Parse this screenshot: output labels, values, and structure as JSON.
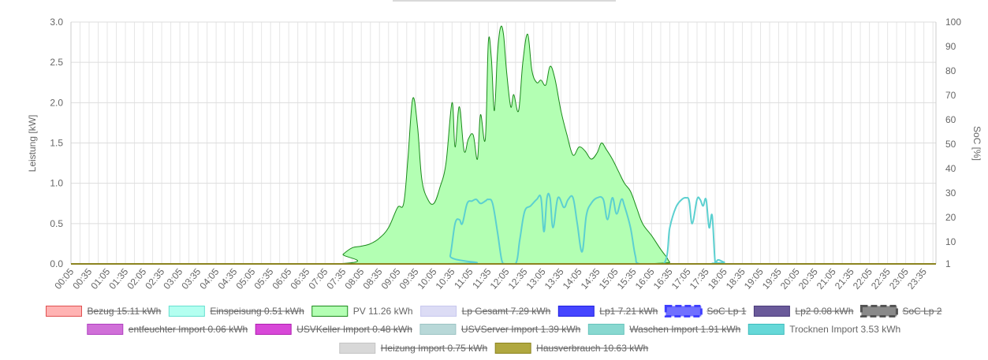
{
  "chart_data": {
    "type": "area",
    "ylabel_left": "Leistung [kW]",
    "ylabel_right": "SoC [%]",
    "ylim_left": [
      0,
      3.0
    ],
    "yticks_left": [
      "0.0",
      "0.5",
      "1.0",
      "1.5",
      "2.0",
      "2.5",
      "3.0"
    ],
    "ylim_right": [
      1,
      100
    ],
    "yticks_right": [
      "1",
      "10",
      "20",
      "30",
      "40",
      "50",
      "60",
      "70",
      "80",
      "90",
      "100"
    ],
    "x_labels": [
      "00:05",
      "00:35",
      "01:05",
      "01:35",
      "02:05",
      "02:35",
      "03:05",
      "03:35",
      "04:05",
      "04:35",
      "05:05",
      "05:35",
      "06:05",
      "06:35",
      "07:05",
      "07:35",
      "08:05",
      "08:35",
      "09:05",
      "09:35",
      "10:05",
      "10:35",
      "11:05",
      "11:35",
      "12:05",
      "12:35",
      "13:05",
      "13:35",
      "14:05",
      "14:35",
      "15:05",
      "15:35",
      "16:05",
      "16:35",
      "17:05",
      "17:35",
      "18:05",
      "18:35",
      "19:05",
      "19:35",
      "20:05",
      "20:35",
      "21:05",
      "21:35",
      "22:05",
      "22:35",
      "23:05",
      "23:35"
    ],
    "grid": true,
    "legend_placement": "bottom",
    "legend": [
      {
        "label": "Bezug 15.11 kWh",
        "fill": "#ffb3b3",
        "stroke": "#e05050",
        "hidden": true,
        "dashed": false
      },
      {
        "label": "Einspeisung 0.51 kWh",
        "fill": "#b3fff0",
        "stroke": "#66e0d0",
        "hidden": true,
        "dashed": false
      },
      {
        "label": "PV 11.26 kWh",
        "fill": "#b3ffb3",
        "stroke": "#1a8a1a",
        "hidden": false,
        "dashed": false
      },
      {
        "label": "Lp Gesamt 7.29 kWh",
        "fill": "#dcdcf5",
        "stroke": "#c8c8ee",
        "hidden": true,
        "dashed": false
      },
      {
        "label": "Lp1 7.21 kWh",
        "fill": "#4545ff",
        "stroke": "#2020e0",
        "hidden": true,
        "dashed": false
      },
      {
        "label": "SoC Lp 1",
        "fill": "#7070ff",
        "stroke": "#4040ff",
        "hidden": true,
        "dashed": true
      },
      {
        "label": "Lp2 0.08 kWh",
        "fill": "#6a5a9a",
        "stroke": "#4a3a7a",
        "hidden": true,
        "dashed": false
      },
      {
        "label": "SoC Lp 2",
        "fill": "#8a8a8a",
        "stroke": "#555555",
        "hidden": true,
        "dashed": true
      },
      {
        "label": "entfeuchter Import 0.06 kWh",
        "fill": "#d070d8",
        "stroke": "#b040c0",
        "hidden": true,
        "dashed": false
      },
      {
        "label": "USVKeller Import 0.48 kWh",
        "fill": "#d848d8",
        "stroke": "#b020b0",
        "hidden": true,
        "dashed": false
      },
      {
        "label": "USVServer Import 1.39 kWh",
        "fill": "#b8d8d8",
        "stroke": "#9cc4c4",
        "hidden": true,
        "dashed": false
      },
      {
        "label": "Waschen Import 1.91 kWh",
        "fill": "#88d8d0",
        "stroke": "#66c4bc",
        "hidden": true,
        "dashed": false
      },
      {
        "label": "Trocknen Import 3.53 kWh",
        "fill": "#66d8d8",
        "stroke": "#3cbcbc",
        "hidden": false,
        "dashed": false
      },
      {
        "label": "Heizung Import 0.75 kWh",
        "fill": "#d8d8d8",
        "stroke": "#c4c4c4",
        "hidden": true,
        "dashed": false
      },
      {
        "label": "Hausverbrauch 10.63 kWh",
        "fill": "#b0a840",
        "stroke": "#8c8420",
        "hidden": true,
        "dashed": false
      }
    ],
    "series": [
      {
        "name": "PV 11.26 kWh",
        "color": "#1a8a1a",
        "fill": "#b3ffb3",
        "points": [
          [
            "00:05",
            0
          ],
          [
            "07:20",
            0
          ],
          [
            "07:35",
            0.12
          ],
          [
            "07:50",
            0.2
          ],
          [
            "08:05",
            0.22
          ],
          [
            "08:20",
            0.25
          ],
          [
            "08:35",
            0.32
          ],
          [
            "08:50",
            0.45
          ],
          [
            "09:05",
            0.7
          ],
          [
            "09:15",
            0.75
          ],
          [
            "09:22",
            1.3
          ],
          [
            "09:30",
            2.05
          ],
          [
            "09:38",
            1.7
          ],
          [
            "09:45",
            1.05
          ],
          [
            "09:55",
            0.8
          ],
          [
            "10:05",
            0.75
          ],
          [
            "10:15",
            0.95
          ],
          [
            "10:25",
            1.25
          ],
          [
            "10:35",
            2.0
          ],
          [
            "10:40",
            1.45
          ],
          [
            "10:47",
            1.95
          ],
          [
            "10:55",
            1.4
          ],
          [
            "11:02",
            1.55
          ],
          [
            "11:10",
            1.6
          ],
          [
            "11:17",
            1.3
          ],
          [
            "11:22",
            1.85
          ],
          [
            "11:30",
            1.55
          ],
          [
            "11:35",
            2.75
          ],
          [
            "11:40",
            2.55
          ],
          [
            "11:45",
            1.9
          ],
          [
            "11:50",
            2.6
          ],
          [
            "11:55",
            2.93
          ],
          [
            "12:00",
            2.85
          ],
          [
            "12:05",
            2.4
          ],
          [
            "12:12",
            1.95
          ],
          [
            "12:17",
            2.1
          ],
          [
            "12:25",
            1.9
          ],
          [
            "12:32",
            2.5
          ],
          [
            "12:40",
            2.85
          ],
          [
            "12:47",
            2.4
          ],
          [
            "12:55",
            2.25
          ],
          [
            "13:02",
            2.28
          ],
          [
            "13:10",
            2.22
          ],
          [
            "13:17",
            2.45
          ],
          [
            "13:25",
            2.3
          ],
          [
            "13:35",
            1.9
          ],
          [
            "13:45",
            1.6
          ],
          [
            "13:55",
            1.35
          ],
          [
            "14:05",
            1.45
          ],
          [
            "14:15",
            1.4
          ],
          [
            "14:25",
            1.3
          ],
          [
            "14:35",
            1.38
          ],
          [
            "14:42",
            1.5
          ],
          [
            "14:50",
            1.42
          ],
          [
            "15:00",
            1.3
          ],
          [
            "15:10",
            1.15
          ],
          [
            "15:20",
            1.0
          ],
          [
            "15:30",
            0.9
          ],
          [
            "15:40",
            0.7
          ],
          [
            "15:50",
            0.5
          ],
          [
            "16:05",
            0.35
          ],
          [
            "16:20",
            0.18
          ],
          [
            "16:30",
            0.08
          ],
          [
            "16:35",
            0.02
          ],
          [
            "16:45",
            0
          ],
          [
            "23:55",
            0
          ]
        ]
      },
      {
        "name": "Trocknen Import 3.53 kWh",
        "color": "#5cd0d0",
        "points": [
          [
            "00:05",
            0
          ],
          [
            "10:25",
            0
          ],
          [
            "10:32",
            0.1
          ],
          [
            "10:40",
            0.5
          ],
          [
            "10:47",
            0.55
          ],
          [
            "10:52",
            0.5
          ],
          [
            "11:00",
            0.75
          ],
          [
            "11:08",
            0.78
          ],
          [
            "11:15",
            0.8
          ],
          [
            "11:22",
            0.75
          ],
          [
            "11:30",
            0.78
          ],
          [
            "11:35",
            0.8
          ],
          [
            "11:42",
            0.75
          ],
          [
            "11:50",
            0.4
          ],
          [
            "11:57",
            0.05
          ],
          [
            "12:02",
            0
          ],
          [
            "12:20",
            0
          ],
          [
            "12:27",
            0.3
          ],
          [
            "12:35",
            0.65
          ],
          [
            "12:45",
            0.72
          ],
          [
            "12:55",
            0.8
          ],
          [
            "13:02",
            0.82
          ],
          [
            "13:07",
            0.4
          ],
          [
            "13:12",
            0.82
          ],
          [
            "13:17",
            0.82
          ],
          [
            "13:22",
            0.45
          ],
          [
            "13:30",
            0.82
          ],
          [
            "13:40",
            0.7
          ],
          [
            "13:47",
            0.8
          ],
          [
            "13:55",
            0.82
          ],
          [
            "14:02",
            0.5
          ],
          [
            "14:10",
            0.15
          ],
          [
            "14:17",
            0.6
          ],
          [
            "14:25",
            0.75
          ],
          [
            "14:35",
            0.82
          ],
          [
            "14:45",
            0.8
          ],
          [
            "14:52",
            0.55
          ],
          [
            "15:00",
            0.82
          ],
          [
            "15:07",
            0.62
          ],
          [
            "15:15",
            0.8
          ],
          [
            "15:20",
            0.72
          ],
          [
            "15:30",
            0.45
          ],
          [
            "15:38",
            0.1
          ],
          [
            "15:45",
            0
          ],
          [
            "16:25",
            0
          ],
          [
            "16:35",
            0.45
          ],
          [
            "16:45",
            0.7
          ],
          [
            "16:55",
            0.8
          ],
          [
            "17:02",
            0.82
          ],
          [
            "17:07",
            0.78
          ],
          [
            "17:12",
            0.5
          ],
          [
            "17:20",
            0.8
          ],
          [
            "17:25",
            0.8
          ],
          [
            "17:30",
            0.72
          ],
          [
            "17:35",
            0.8
          ],
          [
            "17:40",
            0.45
          ],
          [
            "17:45",
            0.6
          ],
          [
            "17:50",
            0.02
          ],
          [
            "17:55",
            0.05
          ],
          [
            "18:05",
            0.02
          ],
          [
            "18:15",
            0
          ],
          [
            "23:55",
            0
          ]
        ]
      },
      {
        "name": "Hausverbrauch 10.63 kWh",
        "color": "#8c8420",
        "points": [
          [
            "00:05",
            0
          ],
          [
            "23:55",
            0
          ]
        ]
      }
    ]
  }
}
